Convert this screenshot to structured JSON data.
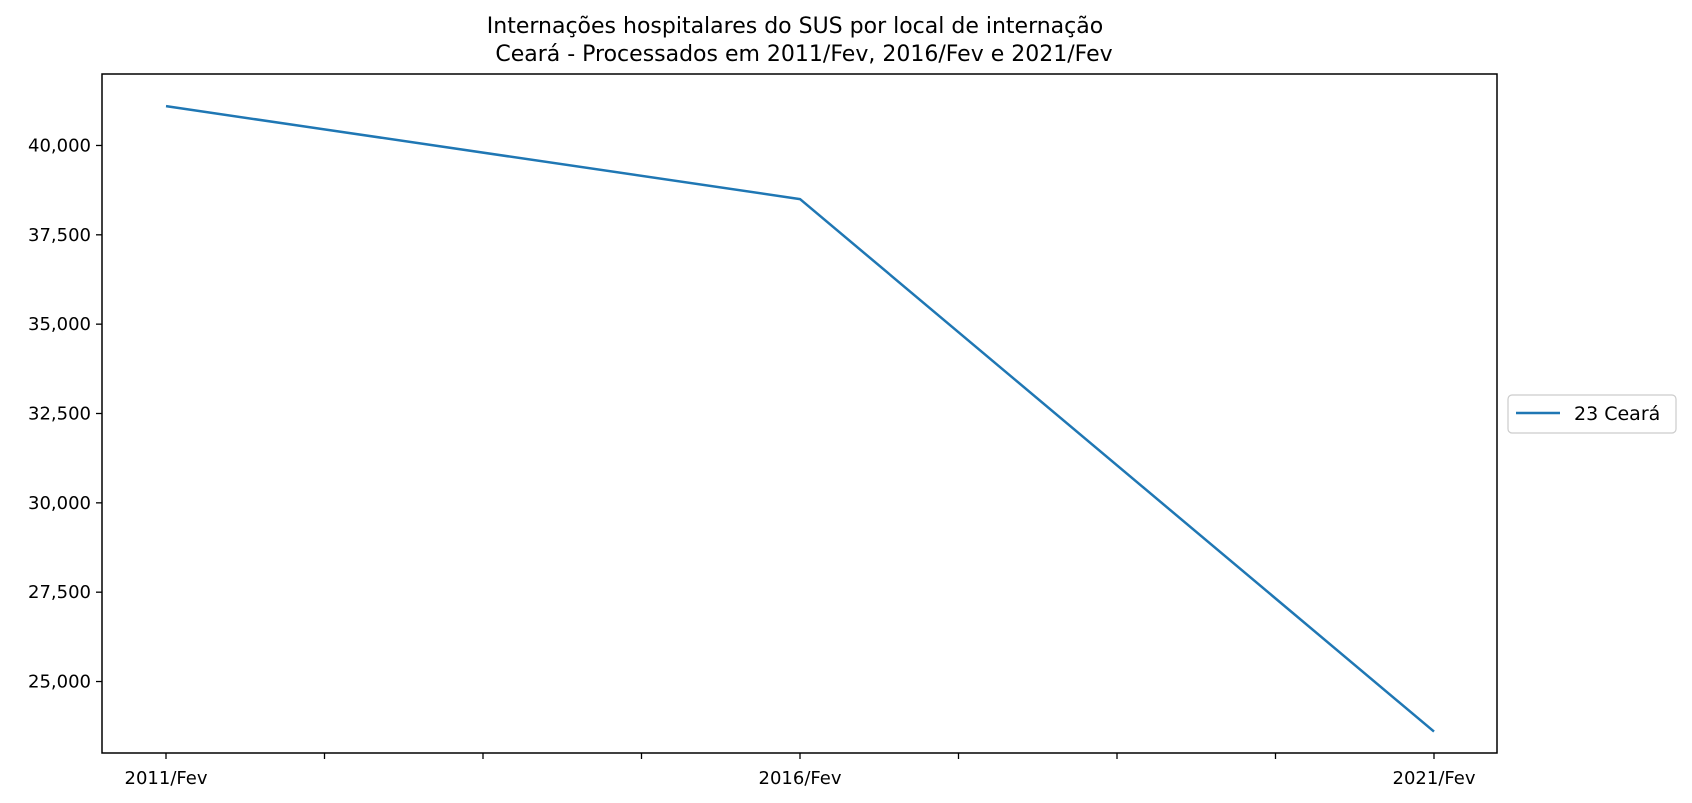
{
  "chart_data": {
    "type": "line",
    "title": "Internações hospitalares do SUS por local de internação",
    "subtitle": "Ceará - Processados em 2011/Fev, 2016/Fev e 2021/Fev",
    "xlabel": "",
    "ylabel": "",
    "categories": [
      "2011/Fev",
      "2016/Fev",
      "2021/Fev"
    ],
    "series": [
      {
        "name": "23 Ceará",
        "values": [
          41100,
          38500,
          23600
        ],
        "color": "#1f77b4"
      }
    ],
    "ylim": [
      23000,
      42000
    ],
    "yticks": [
      25000,
      27500,
      30000,
      32500,
      35000,
      37500,
      40000
    ],
    "ytick_labels": [
      "25,000",
      "27,500",
      "30,000",
      "32,500",
      "35,000",
      "37,500",
      "40,000"
    ],
    "xtick_labels": [
      "2011/Fev",
      "",
      "",
      "",
      "2016/Fev",
      "",
      "",
      "",
      "2021/Fev"
    ],
    "grid": false,
    "legend_position": "right"
  }
}
